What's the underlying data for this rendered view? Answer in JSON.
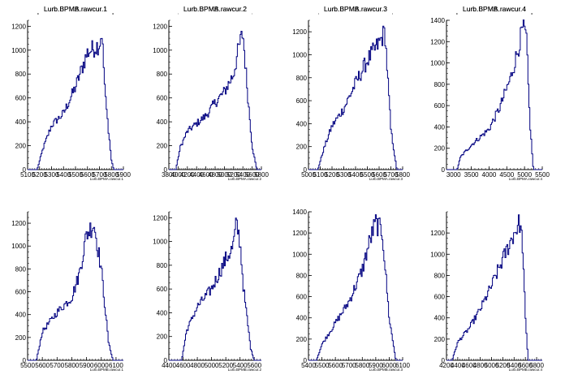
{
  "chart_data": [
    {
      "type": "histogram",
      "title": "Lurb.BPMA.rawcur.1",
      "xlabel": "Lurb.BPMA.rawcur.1",
      "xlim": [
        5100,
        5900
      ],
      "ylim": [
        0,
        1250
      ],
      "xticks": [
        5100,
        5200,
        5300,
        5400,
        5500,
        5600,
        5700,
        5800,
        5900
      ],
      "yticks": [
        0,
        200,
        400,
        600,
        800,
        1000,
        1200
      ],
      "xtick_labels": [
        "5100",
        "5200",
        "5300",
        "5400",
        "5500",
        "5600",
        "5700",
        "5800",
        "5900"
      ],
      "profile": {
        "x": [
          5180,
          5230,
          5300,
          5400,
          5500,
          5600,
          5700,
          5720,
          5750,
          5800,
          5820
        ],
        "y": [
          0,
          180,
          370,
          470,
          690,
          980,
          1050,
          1150,
          600,
          80,
          0
        ]
      }
    },
    {
      "type": "histogram",
      "title": "Lurb.BPMA.rawcur.2",
      "xlabel": "Lurb.BPMA.rawcur.2",
      "xlim": [
        3800,
        5800
      ],
      "ylim": [
        0,
        1250
      ],
      "xticks": [
        3800,
        4000,
        4200,
        4400,
        4600,
        4800,
        5000,
        5200,
        5400,
        5600,
        5800
      ],
      "yticks": [
        0,
        200,
        400,
        600,
        800,
        1000,
        1200
      ],
      "xtick_labels": [
        "3800",
        "4000",
        "4200",
        "4400",
        "4600",
        "4800",
        "5000",
        "5200",
        "5400",
        "5600",
        "5800"
      ],
      "profile": {
        "x": [
          3950,
          4050,
          4200,
          4600,
          4800,
          5000,
          5200,
          5300,
          5400,
          5500,
          5600,
          5700
        ],
        "y": [
          0,
          190,
          320,
          450,
          560,
          650,
          800,
          1000,
          1150,
          650,
          200,
          0
        ]
      }
    },
    {
      "type": "histogram",
      "title": "Lurb.BPMA.rawcur.3",
      "xlabel": "Lurb.BPMA.rawcur.3",
      "xlim": [
        5000,
        5800
      ],
      "ylim": [
        0,
        1300
      ],
      "xticks": [
        5000,
        5100,
        5200,
        5300,
        5400,
        5500,
        5600,
        5700,
        5800
      ],
      "yticks": [
        0,
        200,
        400,
        600,
        800,
        1000,
        1200
      ],
      "xtick_labels": [
        "5000",
        "5100",
        "5200",
        "5300",
        "5400",
        "5500",
        "5600",
        "5700",
        "5800"
      ],
      "profile": {
        "x": [
          5080,
          5130,
          5200,
          5300,
          5400,
          5500,
          5600,
          5650,
          5700,
          5750
        ],
        "y": [
          0,
          180,
          380,
          530,
          750,
          950,
          1100,
          1200,
          350,
          0
        ]
      }
    },
    {
      "type": "histogram",
      "title": "Lurb.BPMA.rawcur.4",
      "xlabel": "Lurb.BPMA.rawcur.4",
      "xlim": [
        2800,
        5500
      ],
      "ylim": [
        0,
        1400
      ],
      "xticks": [
        3000,
        3500,
        4000,
        4500,
        5000,
        5500
      ],
      "yticks": [
        0,
        200,
        400,
        600,
        800,
        1000,
        1200,
        1400
      ],
      "xtick_labels": [
        "3000",
        "3500",
        "4000",
        "4500",
        "5000",
        "5500"
      ],
      "profile": {
        "x": [
          3100,
          3200,
          3500,
          4000,
          4300,
          4600,
          4800,
          4950,
          5050,
          5150,
          5250
        ],
        "y": [
          0,
          120,
          230,
          380,
          580,
          850,
          1100,
          1320,
          1250,
          450,
          0
        ]
      }
    },
    {
      "type": "histogram",
      "title": "Lurb.BPMB.rawcur.1",
      "xlabel": "Lurb.BPMB.rawcur.1",
      "xlim": [
        5500,
        6150
      ],
      "ylim": [
        0,
        1300
      ],
      "xticks": [
        5500,
        5600,
        5700,
        5800,
        5900,
        6000,
        6100
      ],
      "yticks": [
        0,
        200,
        400,
        600,
        800,
        1000,
        1200
      ],
      "xtick_labels": [
        "5500",
        "5600",
        "5700",
        "5800",
        "5900",
        "6000",
        "6100"
      ],
      "profile": {
        "x": [
          5560,
          5600,
          5700,
          5800,
          5850,
          5900,
          5950,
          6000,
          6050,
          6080
        ],
        "y": [
          0,
          250,
          420,
          550,
          750,
          1100,
          1200,
          800,
          150,
          0
        ]
      }
    },
    {
      "type": "histogram",
      "title": "Lurb.BPMB.rawcur.2",
      "xlabel": "Lurb.BPMB.rawcur.2",
      "xlim": [
        4400,
        5700
      ],
      "ylim": [
        0,
        1250
      ],
      "xticks": [
        4400,
        4600,
        4800,
        5000,
        5200,
        5400,
        5600
      ],
      "yticks": [
        0,
        200,
        400,
        600,
        800,
        1000,
        1200
      ],
      "xtick_labels": [
        "4400",
        "4600",
        "4800",
        "5000",
        "5200",
        "5400",
        "5600"
      ],
      "profile": {
        "x": [
          4580,
          4650,
          4800,
          5000,
          5200,
          5300,
          5350,
          5400,
          5450,
          5550,
          5600
        ],
        "y": [
          0,
          250,
          450,
          600,
          850,
          950,
          1150,
          1000,
          600,
          100,
          0
        ]
      }
    },
    {
      "type": "histogram",
      "title": "Lurb.BPMB.rawcur.3",
      "xlabel": "Lurb.BPMB.rawcur.3",
      "xlim": [
        5400,
        6100
      ],
      "ylim": [
        0,
        1400
      ],
      "xticks": [
        5400,
        5500,
        5600,
        5700,
        5800,
        5900,
        6000,
        6100
      ],
      "yticks": [
        0,
        200,
        400,
        600,
        800,
        1000,
        1200,
        1400
      ],
      "xtick_labels": [
        "5400",
        "5500",
        "5600",
        "5700",
        "5800",
        "5900",
        "6000",
        "6100"
      ],
      "profile": {
        "x": [
          5460,
          5500,
          5600,
          5700,
          5800,
          5850,
          5900,
          5950,
          6000,
          6050
        ],
        "y": [
          0,
          150,
          350,
          550,
          850,
          1100,
          1300,
          1200,
          400,
          0
        ]
      }
    },
    {
      "type": "histogram",
      "title": "Lurb.BPMB.rawcur.4",
      "xlabel": "Lurb.BPMB.rawcur.4",
      "xlim": [
        4200,
        5900
      ],
      "ylim": [
        0,
        1400
      ],
      "xticks": [
        4200,
        4400,
        4600,
        4800,
        5000,
        5200,
        5400,
        5600,
        5800
      ],
      "yticks": [
        0,
        200,
        400,
        600,
        800,
        1000,
        1200
      ],
      "xtick_labels": [
        "4200",
        "4400",
        "4600",
        "4800",
        "5000",
        "5200",
        "5400",
        "5600",
        "5800"
      ],
      "profile": {
        "x": [
          4300,
          4400,
          4600,
          4800,
          5000,
          5200,
          5400,
          5500,
          5550,
          5600,
          5650
        ],
        "y": [
          0,
          170,
          300,
          480,
          700,
          950,
          1200,
          1300,
          1100,
          400,
          0
        ]
      }
    }
  ]
}
